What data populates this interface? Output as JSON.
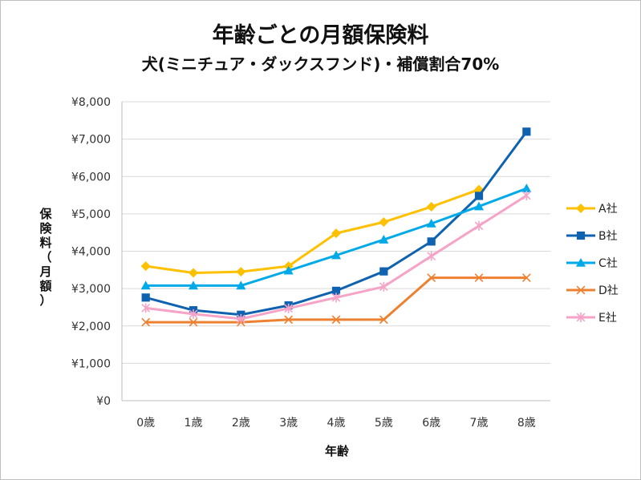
{
  "chart_data": {
    "type": "line",
    "title": "年齢ごとの月額保険料",
    "subtitle": "犬(ミニチュア・ダックスフンド)・補償割合70%",
    "xlabel": "年齢",
    "ylabel": "保険料（月額）",
    "categories": [
      "0歳",
      "1歳",
      "2歳",
      "3歳",
      "4歳",
      "5歳",
      "6歳",
      "7歳",
      "8歳"
    ],
    "ylim": [
      0,
      8000
    ],
    "yticks": [
      0,
      1000,
      2000,
      3000,
      4000,
      5000,
      6000,
      7000,
      8000
    ],
    "ytick_labels": [
      "¥0",
      "¥1,000",
      "¥2,000",
      "¥3,000",
      "¥4,000",
      "¥5,000",
      "¥6,000",
      "¥7,000",
      "¥8,000"
    ],
    "grid": "horizontal",
    "legend_position": "right",
    "series": [
      {
        "name": "A社",
        "color": "#FFC000",
        "marker": "diamond",
        "values": [
          3600,
          3420,
          3450,
          3600,
          4480,
          4780,
          5190,
          5650,
          null
        ]
      },
      {
        "name": "B社",
        "color": "#0F62B0",
        "marker": "square",
        "values": [
          2760,
          2420,
          2300,
          2550,
          2940,
          3460,
          4260,
          5480,
          7200
        ]
      },
      {
        "name": "C社",
        "color": "#00A9E8",
        "marker": "triangle",
        "values": [
          3080,
          3080,
          3080,
          3480,
          3890,
          4310,
          4740,
          5200,
          5680
        ]
      },
      {
        "name": "D社",
        "color": "#EE8031",
        "marker": "x",
        "values": [
          2100,
          2100,
          2100,
          2170,
          2170,
          2170,
          3290,
          3290,
          3290
        ]
      },
      {
        "name": "E社",
        "color": "#F5A3C7",
        "marker": "star",
        "values": [
          2480,
          2320,
          2190,
          2470,
          2760,
          3050,
          3870,
          4680,
          5490
        ]
      }
    ]
  }
}
